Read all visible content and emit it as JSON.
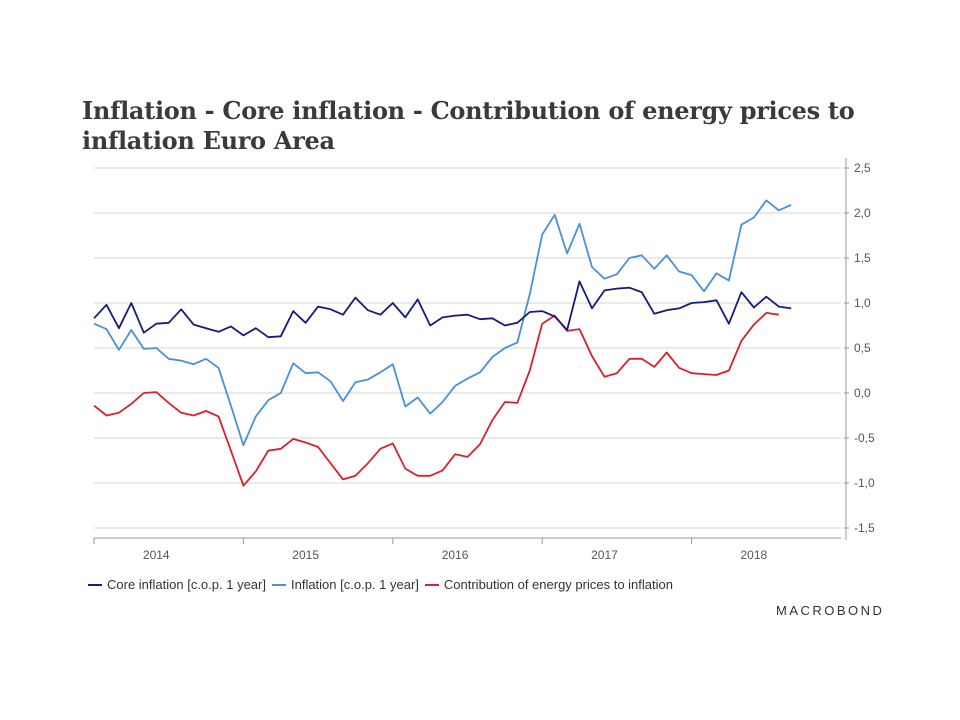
{
  "chart_data": {
    "type": "line",
    "title": "Inflation - Core inflation - Contribution of energy prices to inflation Euro Area",
    "xlabel": "",
    "ylabel": "",
    "ylim": [
      -1.5,
      2.5
    ],
    "yticks": [
      2.5,
      2.0,
      1.5,
      1.0,
      0.5,
      0.0,
      -0.5,
      -1.0,
      -1.5
    ],
    "ytick_labels": [
      "2,5",
      "2,0",
      "1,5",
      "1,0",
      "0,5",
      "0,0",
      "-0,5",
      "-1,0",
      "-1,5"
    ],
    "x_start": "2013-09",
    "x_range_months": [
      0,
      60
    ],
    "year_labels": [
      {
        "label": "2014",
        "month_index": 5
      },
      {
        "label": "2015",
        "month_index": 17
      },
      {
        "label": "2016",
        "month_index": 29
      },
      {
        "label": "2017",
        "month_index": 41
      },
      {
        "label": "2018",
        "month_index": 53
      }
    ],
    "boundary_month_indexes": [
      0,
      12,
      24,
      36,
      48
    ],
    "grid": true,
    "legend_position": "bottom-left",
    "series": [
      {
        "name": "Core inflation [c.o.p. 1 year]",
        "color": "#1a1a7a",
        "values": [
          0.83,
          0.98,
          0.72,
          1.0,
          0.67,
          0.77,
          0.78,
          0.93,
          0.76,
          0.72,
          0.68,
          0.74,
          0.64,
          0.72,
          0.62,
          0.63,
          0.91,
          0.78,
          0.96,
          0.93,
          0.87,
          1.06,
          0.92,
          0.87,
          1.0,
          0.84,
          1.04,
          0.75,
          0.84,
          0.86,
          0.87,
          0.82,
          0.83,
          0.75,
          0.78,
          0.9,
          0.91,
          0.85,
          0.7,
          1.24,
          0.94,
          1.14,
          1.16,
          1.17,
          1.12,
          0.88,
          0.92,
          0.94,
          1.0,
          1.01,
          1.03,
          0.77,
          1.12,
          0.95,
          1.07,
          0.96,
          0.94
        ]
      },
      {
        "name": "Inflation [c.o.p. 1 year]",
        "color": "#4a90d9",
        "values": [
          0.77,
          0.71,
          0.48,
          0.7,
          0.49,
          0.5,
          0.38,
          0.36,
          0.32,
          0.38,
          0.28,
          -0.14,
          -0.58,
          -0.26,
          -0.08,
          0.0,
          0.33,
          0.22,
          0.23,
          0.13,
          -0.09,
          0.12,
          0.15,
          0.23,
          0.32,
          -0.15,
          -0.05,
          -0.23,
          -0.1,
          0.08,
          0.16,
          0.23,
          0.4,
          0.5,
          0.56,
          1.1,
          1.76,
          1.98,
          1.55,
          1.88,
          1.4,
          1.27,
          1.32,
          1.5,
          1.53,
          1.38,
          1.53,
          1.35,
          1.31,
          1.13,
          1.33,
          1.25,
          1.87,
          1.95,
          2.14,
          2.03,
          2.09
        ]
      },
      {
        "name": "Contribution of energy prices to inflation",
        "color": "#d9202f",
        "values": [
          -0.14,
          -0.25,
          -0.22,
          -0.12,
          0.0,
          0.01,
          -0.11,
          -0.22,
          -0.25,
          -0.2,
          -0.26,
          -0.64,
          -1.03,
          -0.87,
          -0.64,
          -0.62,
          -0.51,
          -0.55,
          -0.6,
          -0.78,
          -0.96,
          -0.92,
          -0.78,
          -0.62,
          -0.56,
          -0.84,
          -0.92,
          -0.92,
          -0.86,
          -0.68,
          -0.71,
          -0.57,
          -0.3,
          -0.1,
          -0.11,
          0.25,
          0.77,
          0.86,
          0.69,
          0.71,
          0.41,
          0.18,
          0.22,
          0.38,
          0.38,
          0.29,
          0.45,
          0.28,
          0.22,
          0.21,
          0.2,
          0.25,
          0.58,
          0.76,
          0.89,
          0.87
        ]
      }
    ]
  },
  "legend": {
    "core": "Core inflation [c.o.p. 1 year]",
    "inflation": "Inflation [c.o.p. 1 year]",
    "energy": "Contribution of energy prices to inflation"
  },
  "brand": "MACROBOND"
}
